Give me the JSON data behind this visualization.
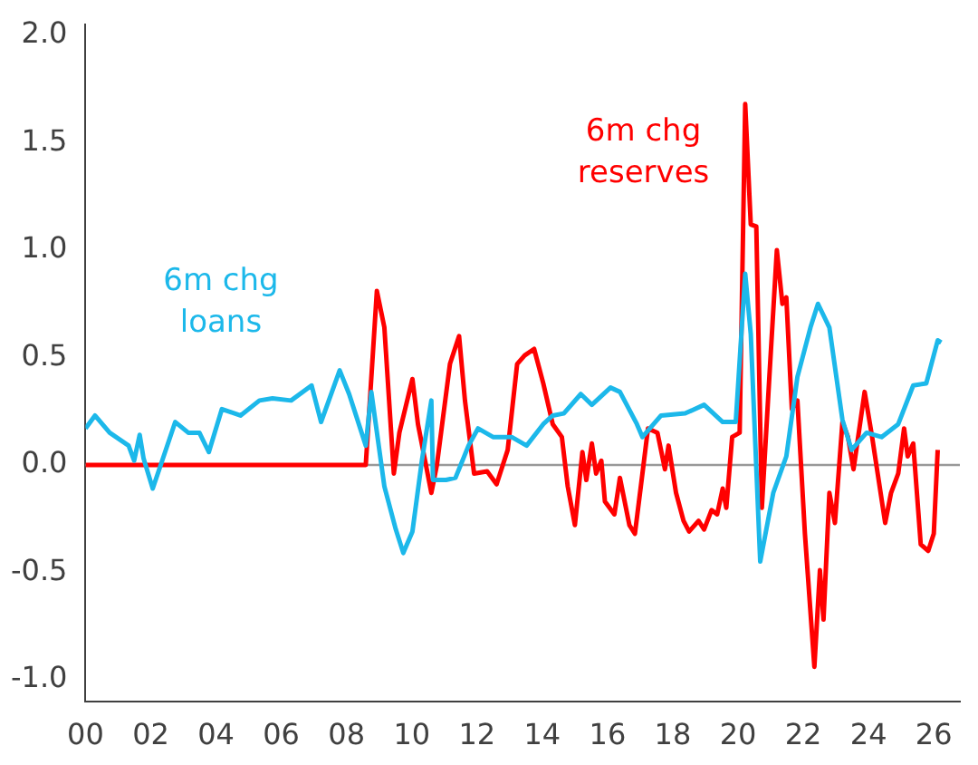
{
  "chart_data": {
    "type": "line",
    "xlim": [
      0,
      26.8
    ],
    "ylim": [
      -1.1,
      2.05
    ],
    "xticks": [
      {
        "value": 0,
        "label": "00"
      },
      {
        "value": 2,
        "label": "02"
      },
      {
        "value": 4,
        "label": "04"
      },
      {
        "value": 6,
        "label": "06"
      },
      {
        "value": 8,
        "label": "08"
      },
      {
        "value": 10,
        "label": "10"
      },
      {
        "value": 12,
        "label": "12"
      },
      {
        "value": 14,
        "label": "14"
      },
      {
        "value": 16,
        "label": "16"
      },
      {
        "value": 18,
        "label": "18"
      },
      {
        "value": 20,
        "label": "20"
      },
      {
        "value": 22,
        "label": "22"
      },
      {
        "value": 24,
        "label": "24"
      },
      {
        "value": 26,
        "label": "26"
      }
    ],
    "yticks": [
      {
        "value": -1,
        "label": "-1.0"
      },
      -0.5,
      {
        "value": 0,
        "label": "0.0"
      },
      0.5,
      {
        "value": 1,
        "label": "1.0"
      },
      1.5,
      {
        "value": 2,
        "label": "2.0"
      }
    ],
    "grid": false,
    "legend": false,
    "marker": "none",
    "line_style": "solid",
    "ref_lines": [
      {
        "axis": "y",
        "value": 0,
        "color": "#999999"
      }
    ],
    "series": [
      {
        "name": "6m chg loans",
        "color": "#1cb8ea",
        "x": [
          0,
          0.29,
          0.74,
          1.32,
          1.49,
          1.66,
          1.78,
          2.06,
          2.35,
          2.75,
          3.15,
          3.49,
          3.78,
          4.18,
          4.75,
          5.33,
          5.73,
          6.3,
          6.93,
          7.22,
          7.79,
          8.08,
          8.59,
          8.76,
          9.16,
          9.51,
          9.74,
          10.02,
          10.31,
          10.6,
          10.65,
          11.05,
          11.34,
          11.74,
          12.03,
          12.49,
          13.06,
          13.52,
          14.03,
          14.32,
          14.66,
          15.18,
          15.52,
          16.09,
          16.38,
          16.9,
          17.07,
          17.64,
          18.38,
          18.96,
          19.53,
          19.93,
          20.22,
          20.39,
          20.68,
          21.08,
          21.48,
          21.82,
          22.22,
          22.45,
          22.8,
          23.2,
          23.48,
          23.94,
          24.4,
          24.91,
          25.37,
          25.77,
          26.12,
          26.23
        ],
        "values": [
          0.17,
          0.23,
          0.15,
          0.09,
          0.02,
          0.14,
          0.03,
          -0.11,
          0.02,
          0.2,
          0.15,
          0.15,
          0.06,
          0.26,
          0.23,
          0.3,
          0.31,
          0.3,
          0.37,
          0.2,
          0.44,
          0.33,
          0.09,
          0.34,
          -0.1,
          -0.3,
          -0.41,
          -0.31,
          0.02,
          0.3,
          -0.07,
          -0.07,
          -0.06,
          0.09,
          0.17,
          0.13,
          0.13,
          0.09,
          0.19,
          0.23,
          0.24,
          0.33,
          0.28,
          0.36,
          0.34,
          0.19,
          0.13,
          0.23,
          0.24,
          0.28,
          0.2,
          0.2,
          0.89,
          0.61,
          -0.45,
          -0.13,
          0.04,
          0.41,
          0.64,
          0.75,
          0.64,
          0.21,
          0.07,
          0.15,
          0.13,
          0.19,
          0.37,
          0.38,
          0.58,
          0.57
        ]
      },
      {
        "name": "6m chg reserves",
        "color": "#ff0000",
        "x": [
          0,
          2,
          4,
          6,
          8,
          8.59,
          8.93,
          9.16,
          9.45,
          9.62,
          10.02,
          10.19,
          10.6,
          10.77,
          11.17,
          11.45,
          11.63,
          11.91,
          12.31,
          12.6,
          12.94,
          13.23,
          13.46,
          13.75,
          14.03,
          14.32,
          14.6,
          14.78,
          15.0,
          15.23,
          15.35,
          15.52,
          15.65,
          15.81,
          15.92,
          16.21,
          16.38,
          16.67,
          16.84,
          17.07,
          17.24,
          17.53,
          17.76,
          17.87,
          18.1,
          18.33,
          18.5,
          18.79,
          18.96,
          19.19,
          19.36,
          19.53,
          19.64,
          19.82,
          20.05,
          20.22,
          20.39,
          20.56,
          20.73,
          20.96,
          21.19,
          21.36,
          21.48,
          21.65,
          21.82,
          22.05,
          22.34,
          22.51,
          22.62,
          22.8,
          22.97,
          23.2,
          23.37,
          23.54,
          23.88,
          24.11,
          24.51,
          24.69,
          24.91,
          25.09,
          25.2,
          25.37,
          25.6,
          25.83,
          26.0,
          26.12
        ],
        "values": [
          0,
          0,
          0,
          0,
          0,
          0,
          0.81,
          0.64,
          -0.04,
          0.15,
          0.4,
          0.19,
          -0.13,
          0,
          0.47,
          0.6,
          0.3,
          -0.04,
          -0.03,
          -0.09,
          0.07,
          0.47,
          0.51,
          0.54,
          0.38,
          0.19,
          0.13,
          -0.1,
          -0.28,
          0.06,
          -0.07,
          0.1,
          -0.04,
          0.02,
          -0.17,
          -0.23,
          -0.06,
          -0.28,
          -0.32,
          -0.04,
          0.17,
          0.15,
          -0.02,
          0.09,
          -0.13,
          -0.26,
          -0.31,
          -0.26,
          -0.3,
          -0.21,
          -0.23,
          -0.11,
          -0.2,
          0.13,
          0.15,
          1.68,
          1.12,
          1.11,
          -0.2,
          0.41,
          1.0,
          0.75,
          0.78,
          0.26,
          0.3,
          -0.32,
          -0.94,
          -0.49,
          -0.72,
          -0.13,
          -0.27,
          0.2,
          0.13,
          -0.02,
          0.34,
          0.13,
          -0.27,
          -0.13,
          -0.04,
          0.17,
          0.04,
          0.1,
          -0.37,
          -0.4,
          -0.32,
          0.07
        ]
      }
    ]
  }
}
